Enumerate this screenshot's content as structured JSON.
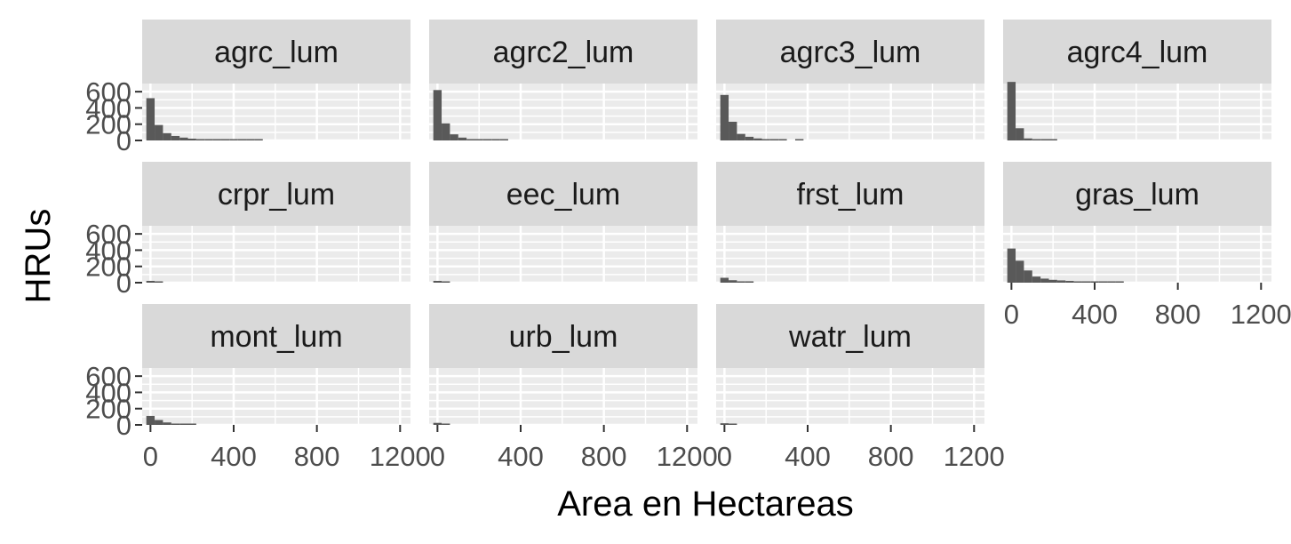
{
  "chart_data": {
    "type": "bar",
    "subtype": "faceted-histogram",
    "title": "",
    "xlabel": "Area en Hectareas",
    "ylabel": "HRUs",
    "xlim": [
      -40,
      1250
    ],
    "ylim": [
      0,
      700
    ],
    "x_ticks": [
      0,
      400,
      800,
      1200
    ],
    "y_ticks": [
      0,
      200,
      400,
      600
    ],
    "bin_width": 40,
    "bin_starts": [
      -20,
      20,
      60,
      100,
      140,
      180,
      220,
      260,
      300,
      340,
      380,
      420,
      460,
      500,
      540,
      580
    ],
    "grid": true,
    "colors": {
      "panel_background": "#ebebeb",
      "gridline": "#ffffff",
      "strip_background": "#d9d9d9",
      "bar_fill": "#595959",
      "tick_text": "#4d4d4d",
      "axis_tick": "#333333"
    },
    "facets": [
      {
        "label": "agrc_lum",
        "counts": [
          520,
          190,
          90,
          55,
          35,
          22,
          14,
          10,
          6,
          4,
          3,
          2,
          1,
          1,
          0,
          0
        ]
      },
      {
        "label": "agrc2_lum",
        "counts": [
          620,
          210,
          75,
          35,
          15,
          8,
          4,
          2,
          1,
          0,
          0,
          0,
          0,
          0,
          0,
          0
        ]
      },
      {
        "label": "agrc3_lum",
        "counts": [
          560,
          230,
          80,
          45,
          25,
          15,
          8,
          4,
          0,
          12,
          0,
          0,
          0,
          0,
          0,
          0
        ]
      },
      {
        "label": "agrc4_lum",
        "counts": [
          720,
          150,
          25,
          8,
          3,
          1,
          0,
          0,
          0,
          0,
          0,
          0,
          0,
          0,
          0,
          0
        ]
      },
      {
        "label": "crpr_lum",
        "counts": [
          22,
          10,
          0,
          0,
          0,
          0,
          0,
          0,
          0,
          0,
          0,
          0,
          0,
          0,
          0,
          0
        ]
      },
      {
        "label": "eec_lum",
        "counts": [
          22,
          8,
          0,
          0,
          0,
          0,
          0,
          0,
          0,
          0,
          0,
          0,
          0,
          0,
          0,
          0
        ]
      },
      {
        "label": "frst_lum",
        "counts": [
          60,
          30,
          8,
          3,
          0,
          0,
          0,
          0,
          0,
          0,
          0,
          0,
          0,
          0,
          0,
          0
        ]
      },
      {
        "label": "gras_lum",
        "counts": [
          420,
          270,
          150,
          75,
          50,
          35,
          28,
          22,
          15,
          10,
          8,
          5,
          3,
          6,
          0,
          0
        ]
      },
      {
        "label": "mont_lum",
        "counts": [
          110,
          60,
          30,
          15,
          5,
          2,
          0,
          0,
          0,
          0,
          0,
          0,
          0,
          0,
          0,
          0
        ]
      },
      {
        "label": "urb_lum",
        "counts": [
          25,
          10,
          0,
          0,
          0,
          0,
          0,
          0,
          0,
          0,
          0,
          0,
          0,
          0,
          0,
          0
        ]
      },
      {
        "label": "watr_lum",
        "counts": [
          20,
          5,
          0,
          0,
          0,
          0,
          0,
          0,
          0,
          0,
          0,
          0,
          0,
          0,
          0,
          0
        ]
      }
    ]
  }
}
